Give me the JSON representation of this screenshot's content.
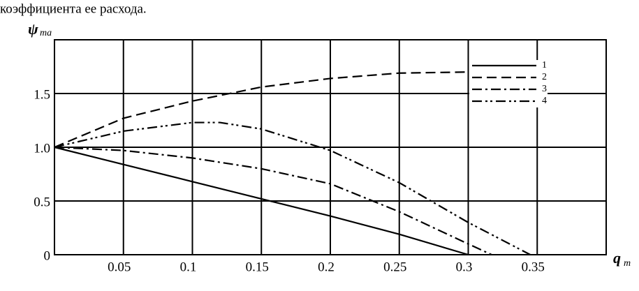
{
  "chart_data": {
    "type": "line",
    "caption": "коэффициента ее расхода.",
    "ylabel": "ψ",
    "ylabel_sub": "ma",
    "xlabel": "q",
    "xlabel_sub": "m",
    "xlim": [
      0,
      0.4
    ],
    "xticks": [
      0.05,
      0.1,
      0.15,
      0.2,
      0.25,
      0.3,
      0.35
    ],
    "ylim": [
      0,
      2
    ],
    "yticks": [
      0,
      0.5,
      {
        "value": 1,
        "label": "1.0"
      },
      {
        "value": 1.5,
        "label": "1.5"
      }
    ],
    "grid": true,
    "legend": "upper right",
    "series": [
      {
        "name": "1",
        "color": "#000000",
        "dash": "solid",
        "x": [
          0,
          0.05,
          0.1,
          0.15,
          0.2,
          0.25,
          0.3
        ],
        "values": [
          1.0,
          0.84,
          0.68,
          0.52,
          0.36,
          0.19,
          0
        ]
      },
      {
        "name": "2",
        "color": "#000000",
        "dash": "dashed",
        "x": [
          0,
          0.05,
          0.1,
          0.15,
          0.2,
          0.25,
          0.3
        ],
        "values": [
          1.0,
          1.27,
          1.43,
          1.56,
          1.64,
          1.69,
          1.7
        ]
      },
      {
        "name": "3",
        "color": "#000000",
        "dash": "dashdot",
        "x": [
          0,
          0.05,
          0.1,
          0.15,
          0.2,
          0.25,
          0.3,
          0.317
        ],
        "values": [
          1.0,
          0.97,
          0.9,
          0.8,
          0.66,
          0.4,
          0.1,
          0
        ]
      },
      {
        "name": "4",
        "color": "#000000",
        "dash": "dashdotdot",
        "x": [
          0,
          0.05,
          0.1,
          0.12,
          0.15,
          0.2,
          0.25,
          0.3,
          0.345
        ],
        "values": [
          1.0,
          1.15,
          1.23,
          1.23,
          1.17,
          0.97,
          0.67,
          0.3,
          0
        ]
      }
    ]
  }
}
